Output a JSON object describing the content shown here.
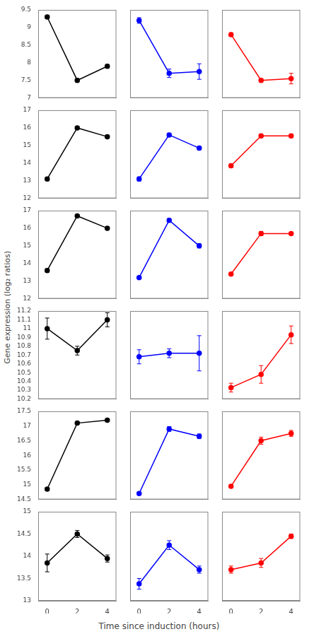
{
  "chart_data": [
    {
      "type": "line",
      "x": [
        0,
        2,
        4
      ],
      "series": [
        {
          "color": "black",
          "values": [
            9.3,
            7.5,
            7.9
          ],
          "yerr": [
            0.05,
            0.05,
            0.05
          ],
          "marker": "o",
          "line_style": "solid"
        }
      ],
      "xlim": [
        -0.6,
        4.6
      ],
      "xticks": [
        0,
        2,
        4
      ],
      "ylim": [
        7.0,
        9.5
      ],
      "yticks": [
        7.0,
        7.5,
        8.0,
        8.5,
        9.0,
        9.5
      ],
      "grid": false,
      "tick_labels": "y"
    },
    {
      "type": "line",
      "x": [
        0,
        2,
        4
      ],
      "series": [
        {
          "color": "blue",
          "values": [
            9.2,
            7.7,
            7.75
          ],
          "yerr": [
            0.08,
            0.12,
            0.22
          ],
          "marker": "o",
          "line_style": "solid"
        }
      ],
      "xlim": [
        -0.6,
        4.6
      ],
      "xticks": [
        0,
        2,
        4
      ],
      "ylim": [
        7.0,
        9.5
      ],
      "yticks": [
        7.0,
        7.5,
        8.0,
        8.5,
        9.0,
        9.5
      ],
      "grid": false,
      "tick_labels": false
    },
    {
      "type": "line",
      "x": [
        0,
        2,
        4
      ],
      "series": [
        {
          "color": "red",
          "values": [
            8.8,
            7.5,
            7.55
          ],
          "yerr": [
            0.05,
            0.05,
            0.15
          ],
          "marker": "o",
          "line_style": "solid"
        }
      ],
      "xlim": [
        -0.6,
        4.6
      ],
      "xticks": [
        0,
        2,
        4
      ],
      "ylim": [
        7.0,
        9.5
      ],
      "yticks": [
        7.0,
        7.5,
        8.0,
        8.5,
        9.0,
        9.5
      ],
      "grid": false,
      "tick_labels": false
    },
    {
      "type": "line",
      "x": [
        0,
        2,
        4
      ],
      "series": [
        {
          "color": "black",
          "values": [
            13.1,
            16.0,
            15.5
          ],
          "yerr": [
            0.1,
            0.08,
            0.08
          ],
          "marker": "o",
          "line_style": "solid"
        }
      ],
      "xlim": [
        -0.6,
        4.6
      ],
      "xticks": [
        0,
        2,
        4
      ],
      "ylim": [
        12.0,
        17.0
      ],
      "yticks": [
        12,
        13,
        14,
        15,
        16,
        17
      ],
      "grid": false,
      "tick_labels": "y"
    },
    {
      "type": "line",
      "x": [
        0,
        2,
        4
      ],
      "series": [
        {
          "color": "blue",
          "values": [
            13.1,
            15.6,
            14.85
          ],
          "yerr": [
            0.12,
            0.1,
            0.1
          ],
          "marker": "o",
          "line_style": "solid"
        }
      ],
      "xlim": [
        -0.6,
        4.6
      ],
      "xticks": [
        0,
        2,
        4
      ],
      "ylim": [
        12.0,
        17.0
      ],
      "yticks": [
        12,
        13,
        14,
        15,
        16,
        17
      ],
      "grid": false,
      "tick_labels": false
    },
    {
      "type": "line",
      "x": [
        0,
        2,
        4
      ],
      "series": [
        {
          "color": "red",
          "values": [
            13.85,
            15.55,
            15.55
          ],
          "yerr": [
            0.1,
            0.1,
            0.1
          ],
          "marker": "o",
          "line_style": "solid"
        }
      ],
      "xlim": [
        -0.6,
        4.6
      ],
      "xticks": [
        0,
        2,
        4
      ],
      "ylim": [
        12.0,
        17.0
      ],
      "yticks": [
        12,
        13,
        14,
        15,
        16,
        17
      ],
      "grid": false,
      "tick_labels": false
    },
    {
      "type": "line",
      "x": [
        0,
        2,
        4
      ],
      "series": [
        {
          "color": "black",
          "values": [
            13.6,
            16.7,
            16.0
          ],
          "yerr": [
            0.1,
            0.08,
            0.08
          ],
          "marker": "o",
          "line_style": "solid"
        }
      ],
      "xlim": [
        -0.6,
        4.6
      ],
      "xticks": [
        0,
        2,
        4
      ],
      "ylim": [
        12.0,
        17.0
      ],
      "yticks": [
        12,
        13,
        14,
        15,
        16,
        17
      ],
      "grid": false,
      "tick_labels": "y",
      "ylabel": "Gene expression (log₂ ratios)"
    },
    {
      "type": "line",
      "x": [
        0,
        2,
        4
      ],
      "series": [
        {
          "color": "blue",
          "values": [
            13.2,
            16.45,
            15.0
          ],
          "yerr": [
            0.08,
            0.1,
            0.12
          ],
          "marker": "o",
          "line_style": "solid"
        }
      ],
      "xlim": [
        -0.6,
        4.6
      ],
      "xticks": [
        0,
        2,
        4
      ],
      "ylim": [
        12.0,
        17.0
      ],
      "yticks": [
        12,
        13,
        14,
        15,
        16,
        17
      ],
      "grid": false,
      "tick_labels": false
    },
    {
      "type": "line",
      "x": [
        0,
        2,
        4
      ],
      "series": [
        {
          "color": "red",
          "values": [
            13.4,
            15.7,
            15.7
          ],
          "yerr": [
            0.08,
            0.12,
            0.08
          ],
          "marker": "o",
          "line_style": "solid"
        }
      ],
      "xlim": [
        -0.6,
        4.6
      ],
      "xticks": [
        0,
        2,
        4
      ],
      "ylim": [
        12.0,
        17.0
      ],
      "yticks": [
        12,
        13,
        14,
        15,
        16,
        17
      ],
      "grid": false,
      "tick_labels": false
    },
    {
      "type": "line",
      "x": [
        0,
        2,
        4
      ],
      "series": [
        {
          "color": "black",
          "values": [
            11.0,
            10.75,
            11.1
          ],
          "yerr": [
            0.12,
            0.05,
            0.08
          ],
          "marker": "o",
          "line_style": "solid"
        }
      ],
      "xlim": [
        -0.6,
        4.6
      ],
      "xticks": [
        0,
        2,
        4
      ],
      "ylim": [
        10.2,
        11.2
      ],
      "yticks": [
        10.2,
        10.3,
        10.4,
        10.5,
        10.6,
        10.7,
        10.8,
        10.9,
        11.0,
        11.1,
        11.2
      ],
      "grid": false,
      "tick_labels": "y"
    },
    {
      "type": "line",
      "x": [
        0,
        2,
        4
      ],
      "series": [
        {
          "color": "blue",
          "values": [
            10.68,
            10.72,
            10.72
          ],
          "yerr": [
            0.08,
            0.05,
            0.2
          ],
          "marker": "o",
          "line_style": "solid"
        }
      ],
      "xlim": [
        -0.6,
        4.6
      ],
      "xticks": [
        0,
        2,
        4
      ],
      "ylim": [
        10.2,
        11.2
      ],
      "yticks": [
        10.2,
        10.3,
        10.4,
        10.5,
        10.6,
        10.7,
        10.8,
        10.9,
        11.0,
        11.1,
        11.2
      ],
      "grid": false,
      "tick_labels": false
    },
    {
      "type": "line",
      "x": [
        0,
        2,
        4
      ],
      "series": [
        {
          "color": "red",
          "values": [
            10.33,
            10.48,
            10.93
          ],
          "yerr": [
            0.05,
            0.1,
            0.1
          ],
          "marker": "o",
          "line_style": "solid"
        }
      ],
      "xlim": [
        -0.6,
        4.6
      ],
      "xticks": [
        0,
        2,
        4
      ],
      "ylim": [
        10.2,
        11.2
      ],
      "yticks": [
        10.2,
        10.3,
        10.4,
        10.5,
        10.6,
        10.7,
        10.8,
        10.9,
        11.0,
        11.1,
        11.2
      ],
      "grid": false,
      "tick_labels": false
    },
    {
      "type": "line",
      "x": [
        0,
        2,
        4
      ],
      "series": [
        {
          "color": "black",
          "values": [
            14.85,
            17.1,
            17.2
          ],
          "yerr": [
            0.05,
            0.05,
            0.05
          ],
          "marker": "o",
          "line_style": "solid"
        }
      ],
      "xlim": [
        -0.6,
        4.6
      ],
      "xticks": [
        0,
        2,
        4
      ],
      "ylim": [
        14.5,
        17.5
      ],
      "yticks": [
        14.5,
        15.0,
        15.5,
        16.0,
        16.5,
        17.0,
        17.5
      ],
      "grid": false,
      "tick_labels": "y"
    },
    {
      "type": "line",
      "x": [
        0,
        2,
        4
      ],
      "series": [
        {
          "color": "blue",
          "values": [
            14.7,
            16.9,
            16.65
          ],
          "yerr": [
            0.05,
            0.08,
            0.08
          ],
          "marker": "o",
          "line_style": "solid"
        }
      ],
      "xlim": [
        -0.6,
        4.6
      ],
      "xticks": [
        0,
        2,
        4
      ],
      "ylim": [
        14.5,
        17.5
      ],
      "yticks": [
        14.5,
        15.0,
        15.5,
        16.0,
        16.5,
        17.0,
        17.5
      ],
      "grid": false,
      "tick_labels": false
    },
    {
      "type": "line",
      "x": [
        0,
        2,
        4
      ],
      "series": [
        {
          "color": "red",
          "values": [
            14.95,
            16.5,
            16.75
          ],
          "yerr": [
            0.05,
            0.12,
            0.1
          ],
          "marker": "o",
          "line_style": "solid"
        }
      ],
      "xlim": [
        -0.6,
        4.6
      ],
      "xticks": [
        0,
        2,
        4
      ],
      "ylim": [
        14.5,
        17.5
      ],
      "yticks": [
        14.5,
        15.0,
        15.5,
        16.0,
        16.5,
        17.0,
        17.5
      ],
      "grid": false,
      "tick_labels": false
    },
    {
      "type": "line",
      "x": [
        0,
        2,
        4
      ],
      "series": [
        {
          "color": "black",
          "values": [
            13.85,
            14.5,
            13.95
          ],
          "yerr": [
            0.2,
            0.08,
            0.08
          ],
          "marker": "o",
          "line_style": "solid"
        }
      ],
      "xlim": [
        -0.6,
        4.6
      ],
      "xticks": [
        0,
        2,
        4
      ],
      "ylim": [
        13.0,
        15.0
      ],
      "yticks": [
        13.0,
        13.5,
        14.0,
        14.5,
        15.0
      ],
      "grid": false
    },
    {
      "type": "line",
      "x": [
        0,
        2,
        4
      ],
      "series": [
        {
          "color": "blue",
          "values": [
            13.38,
            14.25,
            13.7
          ],
          "yerr": [
            0.12,
            0.1,
            0.08
          ],
          "marker": "o",
          "line_style": "solid"
        }
      ],
      "xlim": [
        -0.6,
        4.6
      ],
      "xticks": [
        0,
        2,
        4
      ],
      "ylim": [
        13.0,
        15.0
      ],
      "yticks": [
        13.0,
        13.5,
        14.0,
        14.5,
        15.0
      ],
      "grid": false,
      "tick_labels": "x",
      "xlabel": "Time since induction (hours)"
    },
    {
      "type": "line",
      "x": [
        0,
        2,
        4
      ],
      "series": [
        {
          "color": "red",
          "values": [
            13.7,
            13.85,
            14.45
          ],
          "yerr": [
            0.08,
            0.1,
            0.05
          ],
          "marker": "o",
          "line_style": "solid"
        }
      ],
      "xlim": [
        -0.6,
        4.6
      ],
      "xticks": [
        0,
        2,
        4
      ],
      "ylim": [
        13.0,
        15.0
      ],
      "yticks": [
        13.0,
        13.5,
        14.0,
        14.5,
        15.0
      ],
      "grid": false,
      "tick_labels": "x"
    }
  ]
}
